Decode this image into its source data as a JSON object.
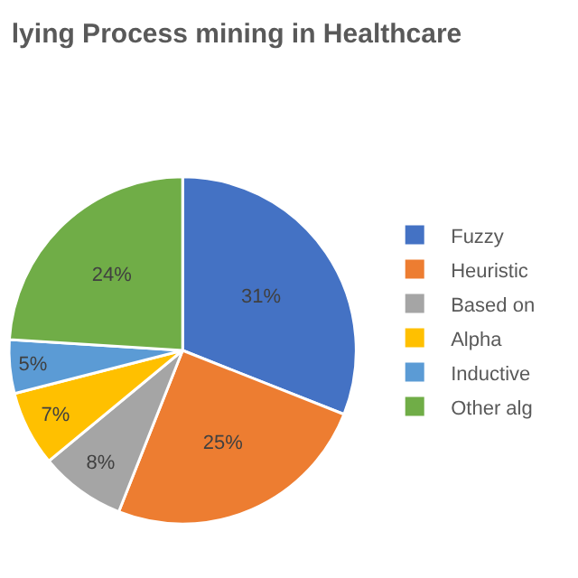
{
  "chart_data": {
    "type": "pie",
    "title": "lying Process mining in Healthcare",
    "categories": [
      "Fuzzy",
      "Heuristic",
      "Based on",
      "Alpha",
      "Inductive",
      "Other alg"
    ],
    "values": [
      31,
      25,
      8,
      7,
      5,
      24
    ],
    "colors": [
      "#4472c4",
      "#ed7d31",
      "#a5a5a5",
      "#ffc000",
      "#5b9bd5",
      "#70ad47"
    ],
    "value_labels": [
      "31%",
      "25%",
      "8%",
      "7%",
      "5%",
      "24%"
    ],
    "legend": "right"
  }
}
